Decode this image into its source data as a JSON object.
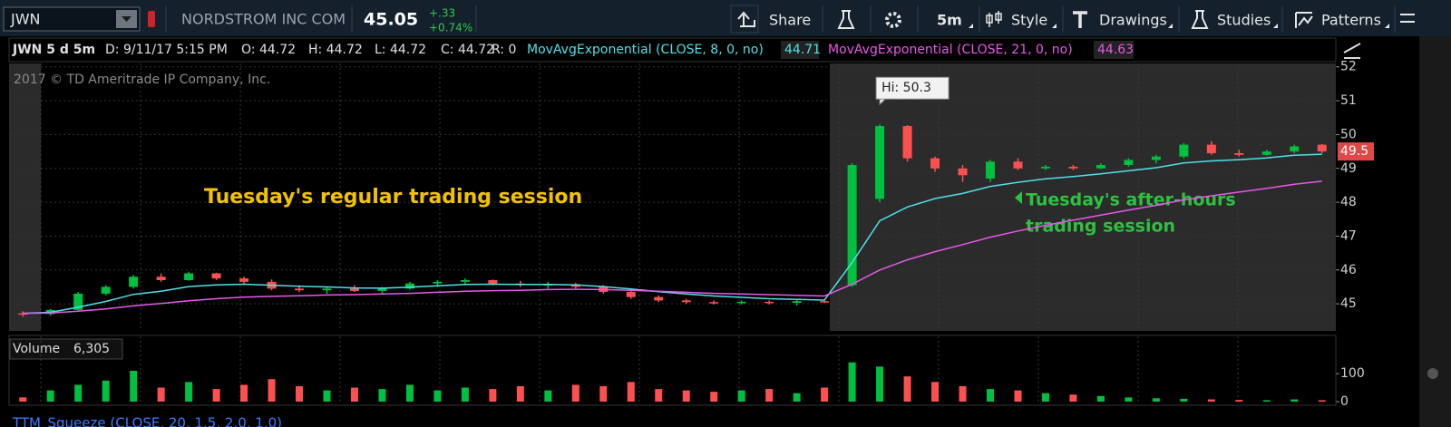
{
  "toolbar": {
    "symbol": "JWN",
    "description": "NORDSTROM INC COM",
    "last": "45.05",
    "change": "+.33",
    "change_pct": "+0.74%",
    "buttons": [
      "Share",
      "5m",
      "Style",
      "Drawings",
      "Studies",
      "Patterns"
    ]
  },
  "info_bar": {
    "symbol": "JWN 5 d 5m",
    "date": "D: 9/11/17 5:15 PM",
    "open": "O: 44.72",
    "high": "H: 44.72",
    "low": "L: 44.72",
    "close": "C: 44.72",
    "range": "R: 0"
  },
  "chart_data": {
    "type": "candlestick",
    "watermark": "2017 © TD Ameritrade IP Company, Inc.",
    "annotations": [
      "Tuesday's regular trading session",
      "Tuesday's after-hours",
      "trading session"
    ],
    "up_color": "#00c040",
    "down_color": "#ff5050",
    "open": [
      44.72,
      44.7,
      44.82,
      45.3,
      45.5,
      45.8,
      45.7,
      45.9,
      45.75,
      45.65,
      45.45,
      45.4,
      45.45,
      45.38,
      45.45,
      45.6,
      45.65,
      45.7,
      45.6,
      45.55,
      45.58,
      45.5,
      45.35,
      45.2,
      45.1,
      45.05,
      45.02,
      45.06,
      45.03,
      45.08,
      45.55,
      48.1,
      50.25,
      49.3,
      49.0,
      48.7,
      49.2,
      49.0,
      49.05,
      49.0,
      49.1,
      49.25,
      49.35,
      49.7,
      49.45,
      49.4,
      49.5,
      49.7
    ],
    "high": [
      44.78,
      44.85,
      45.35,
      45.55,
      45.85,
      45.9,
      45.95,
      45.92,
      45.8,
      45.72,
      45.55,
      45.5,
      45.55,
      45.5,
      45.65,
      45.7,
      45.75,
      45.72,
      45.68,
      45.65,
      45.62,
      45.55,
      45.4,
      45.25,
      45.15,
      45.1,
      45.1,
      45.1,
      45.12,
      45.12,
      49.15,
      50.3,
      50.28,
      49.35,
      49.1,
      49.25,
      49.3,
      49.1,
      49.1,
      49.15,
      49.3,
      49.4,
      49.75,
      49.8,
      49.55,
      49.55,
      49.7,
      49.72
    ],
    "low": [
      44.62,
      44.65,
      44.8,
      45.25,
      45.45,
      45.65,
      45.68,
      45.7,
      45.6,
      45.4,
      45.35,
      45.3,
      45.35,
      45.3,
      45.42,
      45.5,
      45.55,
      45.55,
      45.5,
      45.45,
      45.45,
      45.3,
      45.15,
      45.05,
      45.0,
      44.98,
      44.98,
      44.98,
      44.95,
      45.02,
      45.5,
      48.0,
      49.2,
      48.9,
      48.6,
      48.6,
      48.95,
      48.95,
      48.95,
      48.98,
      49.05,
      49.15,
      49.3,
      49.4,
      49.35,
      49.38,
      49.45,
      49.45
    ],
    "close": [
      44.7,
      44.82,
      45.3,
      45.5,
      45.8,
      45.7,
      45.9,
      45.75,
      45.65,
      45.45,
      45.4,
      45.45,
      45.38,
      45.45,
      45.6,
      45.65,
      45.7,
      45.6,
      45.55,
      45.58,
      45.5,
      45.35,
      45.2,
      45.1,
      45.05,
      45.02,
      45.06,
      45.03,
      45.08,
      45.05,
      49.1,
      50.25,
      49.3,
      49.0,
      48.8,
      49.2,
      49.0,
      49.05,
      49.0,
      49.1,
      49.25,
      49.35,
      49.7,
      49.45,
      49.4,
      49.5,
      49.65,
      49.5
    ],
    "series": [
      {
        "name": "MovAvgExponential (CLOSE, 8, 0, no)",
        "color": "#4fe0e8",
        "readout": 44.71,
        "values": [
          44.72,
          44.75,
          44.9,
          45.07,
          45.28,
          45.37,
          45.51,
          45.56,
          45.58,
          45.55,
          45.52,
          45.5,
          45.47,
          45.46,
          45.49,
          45.53,
          45.57,
          45.58,
          45.57,
          45.57,
          45.56,
          45.51,
          45.44,
          45.36,
          45.29,
          45.23,
          45.19,
          45.15,
          45.13,
          45.11,
          46.22,
          47.45,
          47.86,
          48.11,
          48.26,
          48.47,
          48.59,
          48.69,
          48.76,
          48.84,
          48.93,
          49.02,
          49.16,
          49.22,
          49.26,
          49.31,
          49.39,
          49.42
        ]
      },
      {
        "name": "MovAvgExponential (CLOSE, 21, 0, no)",
        "color": "#e858e8",
        "readout": 44.63,
        "values": [
          44.72,
          44.73,
          44.78,
          44.85,
          44.94,
          45.01,
          45.09,
          45.15,
          45.2,
          45.22,
          45.24,
          45.26,
          45.27,
          45.29,
          45.31,
          45.34,
          45.37,
          45.39,
          45.4,
          45.42,
          45.43,
          45.42,
          45.4,
          45.37,
          45.34,
          45.31,
          45.29,
          45.27,
          45.25,
          45.23,
          45.58,
          46.0,
          46.3,
          46.54,
          46.75,
          46.97,
          47.15,
          47.32,
          47.47,
          47.62,
          47.77,
          47.91,
          48.07,
          48.19,
          48.3,
          48.41,
          48.53,
          48.62
        ]
      }
    ],
    "high_callout": {
      "value": 50.3,
      "label": "Hi: 50.3"
    },
    "last_price": 49.5,
    "ylim": [
      44.2,
      52.1
    ],
    "yticks": [
      45,
      46,
      47,
      48,
      49,
      50,
      51,
      52
    ],
    "grid": true,
    "volume": {
      "title": "Volume",
      "last": {
        "value": 6305,
        "label": "6,305"
      },
      "values": [
        15,
        40,
        60,
        75,
        110,
        50,
        70,
        45,
        60,
        80,
        55,
        40,
        50,
        45,
        60,
        40,
        50,
        45,
        55,
        40,
        60,
        55,
        70,
        45,
        40,
        35,
        40,
        45,
        30,
        50,
        140,
        125,
        90,
        70,
        55,
        45,
        40,
        30,
        25,
        20,
        15,
        12,
        10,
        8,
        6,
        5,
        8,
        5
      ],
      "ylim": [
        0,
        220
      ],
      "yticks": [
        0,
        100
      ]
    },
    "lower_study": "TTM_Squeeze (CLOSE, 20, 1.5, 2.0, 1.0)"
  }
}
